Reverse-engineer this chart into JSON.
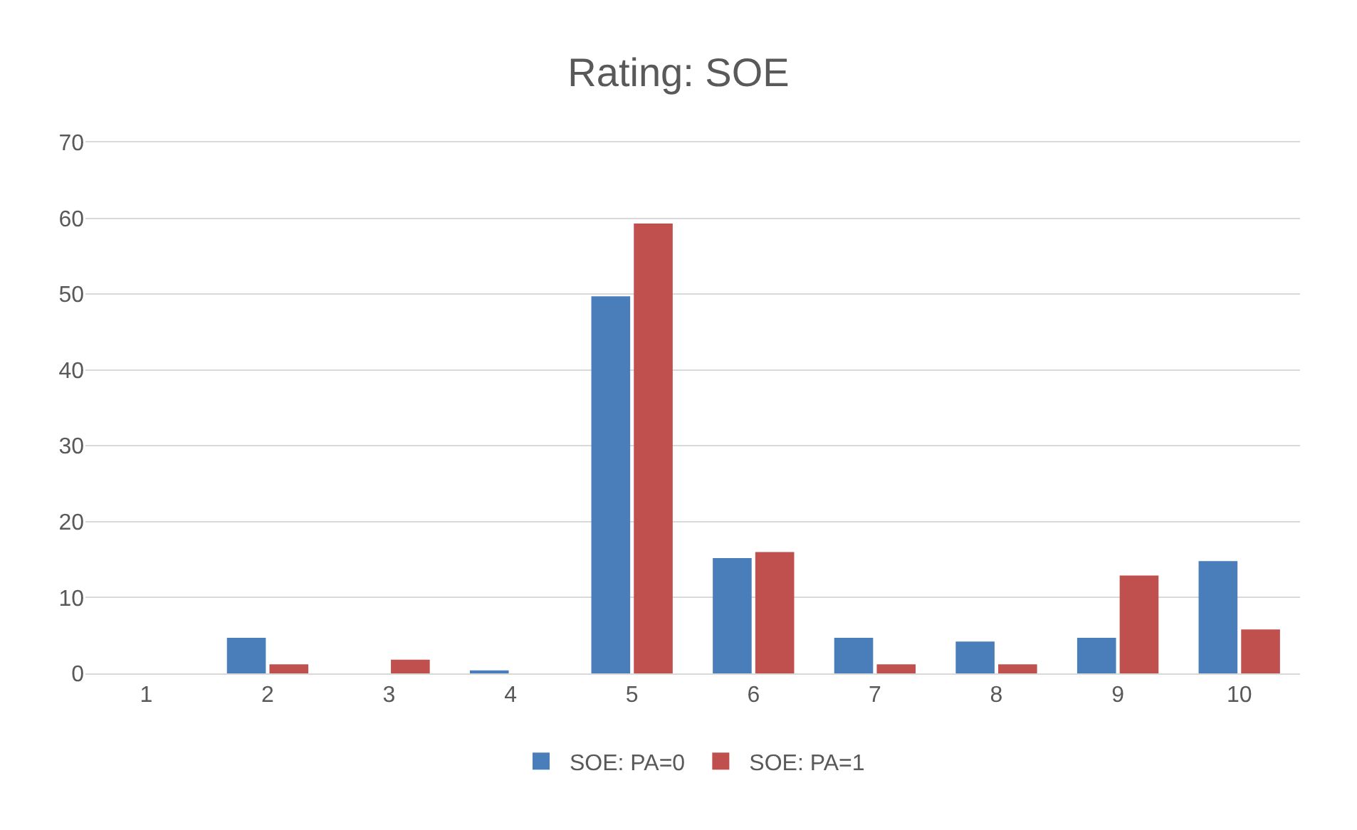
{
  "chart_data": {
    "type": "bar",
    "title": "Rating: SOE",
    "categories": [
      "1",
      "2",
      "3",
      "4",
      "5",
      "6",
      "7",
      "8",
      "9",
      "10"
    ],
    "series": [
      {
        "name": "SOE: PA=0",
        "color": "#4a7ebb",
        "values": [
          0,
          4.7,
          0,
          0.4,
          49.7,
          15.2,
          4.7,
          4.2,
          4.7,
          14.8
        ]
      },
      {
        "name": "SOE: PA=1",
        "color": "#c0504d",
        "values": [
          0,
          1.2,
          1.8,
          0,
          59.3,
          16,
          1.2,
          1.2,
          12.9,
          5.8
        ]
      }
    ],
    "ylim": [
      0,
      70
    ],
    "yticks": [
      0,
      10,
      20,
      30,
      40,
      50,
      60,
      70
    ],
    "grid": "y",
    "legend": "bottom"
  }
}
